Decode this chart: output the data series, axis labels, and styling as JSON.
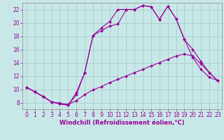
{
  "xlabel": "Windchill (Refroidissement éolien,°C)",
  "bg_color": "#c8e8e8",
  "grid_color": "#aacccc",
  "line_color": "#990099",
  "xlim": [
    -0.5,
    23.5
  ],
  "ylim": [
    7.0,
    23.0
  ],
  "xticks": [
    0,
    1,
    2,
    3,
    4,
    5,
    6,
    7,
    8,
    9,
    10,
    11,
    12,
    13,
    14,
    15,
    16,
    17,
    18,
    19,
    20,
    21,
    22,
    23
  ],
  "yticks": [
    8,
    10,
    12,
    14,
    16,
    18,
    20,
    22
  ],
  "line1_x": [
    0,
    1,
    2,
    3,
    4,
    5,
    6,
    7,
    8,
    9,
    10,
    11,
    12,
    13,
    14,
    15,
    16,
    17,
    18,
    19,
    20,
    21,
    22,
    23
  ],
  "line1_y": [
    10.3,
    9.6,
    8.9,
    8.1,
    7.9,
    7.7,
    8.3,
    9.2,
    9.9,
    10.4,
    11.0,
    11.5,
    12.0,
    12.5,
    13.0,
    13.5,
    14.0,
    14.5,
    15.0,
    15.3,
    15.0,
    13.8,
    12.5,
    11.3
  ],
  "line2_x": [
    0,
    1,
    2,
    3,
    4,
    5,
    6,
    7,
    8,
    9,
    10,
    11,
    12,
    13,
    14,
    15,
    16,
    17,
    18,
    19,
    20,
    21,
    22,
    23
  ],
  "line2_y": [
    10.3,
    9.6,
    8.9,
    8.1,
    7.8,
    7.6,
    9.5,
    12.5,
    18.1,
    19.2,
    20.2,
    22.0,
    22.0,
    22.0,
    22.6,
    22.4,
    20.5,
    22.5,
    20.6,
    17.5,
    14.8,
    13.0,
    11.8,
    11.3
  ],
  "line3_x": [
    0,
    1,
    2,
    3,
    4,
    5,
    6,
    7,
    8,
    9,
    10,
    11,
    12,
    13,
    14,
    15,
    16,
    17,
    18,
    19,
    20,
    21,
    22,
    23
  ],
  "line3_y": [
    10.3,
    9.6,
    8.9,
    8.1,
    7.8,
    7.6,
    9.2,
    12.5,
    18.1,
    18.8,
    19.5,
    19.8,
    22.0,
    22.0,
    22.6,
    22.4,
    20.5,
    22.5,
    20.6,
    17.5,
    16.0,
    14.2,
    12.5,
    11.3
  ],
  "tick_labelsize": 5.5,
  "xlabel_fontsize": 6.0,
  "spine_color": "#888888",
  "marker": "D",
  "markersize": 2.0,
  "linewidth": 0.8
}
